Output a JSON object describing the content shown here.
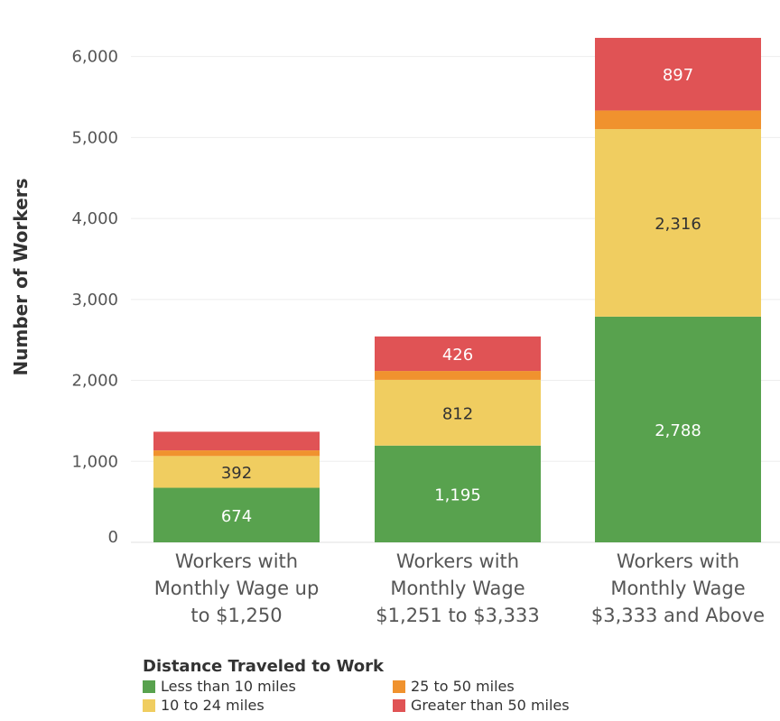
{
  "chart_data": {
    "type": "bar",
    "stacked": true,
    "ylabel": "Number of Workers",
    "xlabel": "",
    "ylim": [
      0,
      6400
    ],
    "yticks": [
      0,
      1000,
      2000,
      3000,
      4000,
      5000,
      6000
    ],
    "ytick_labels": [
      "0",
      "1,000",
      "2,000",
      "3,000",
      "4,000",
      "5,000",
      "6,000"
    ],
    "grid": true,
    "categories": [
      [
        "Workers with",
        "Monthly Wage up",
        "to $1,250"
      ],
      [
        "Workers with",
        "Monthly Wage",
        "$1,251 to $3,333"
      ],
      [
        "Workers with",
        "Monthly Wage",
        "$3,333 and Above"
      ]
    ],
    "series": [
      {
        "name": "Less than 10 miles",
        "color": "#58a24e",
        "label_color": "#ffffff",
        "values": [
          674,
          1195,
          2788
        ],
        "labels": [
          "674",
          "1,195",
          "2,788"
        ]
      },
      {
        "name": "10 to 24 miles",
        "color": "#f0cd60",
        "label_color": "#333333",
        "values": [
          392,
          812,
          2316
        ],
        "labels": [
          "392",
          "812",
          "2,316"
        ]
      },
      {
        "name": "25 to 50 miles",
        "color": "#f0922e",
        "label_color": "#333333",
        "values": [
          70,
          110,
          230
        ],
        "labels": [
          "",
          "",
          ""
        ]
      },
      {
        "name": "Greater than 50 miles",
        "color": "#e05355",
        "label_color": "#ffffff",
        "values": [
          230,
          426,
          897
        ],
        "labels": [
          "",
          "426",
          "897"
        ]
      }
    ],
    "legend": {
      "title": "Distance Traveled to Work",
      "placement": "bottom-left",
      "order": [
        0,
        2,
        1,
        3
      ]
    }
  }
}
